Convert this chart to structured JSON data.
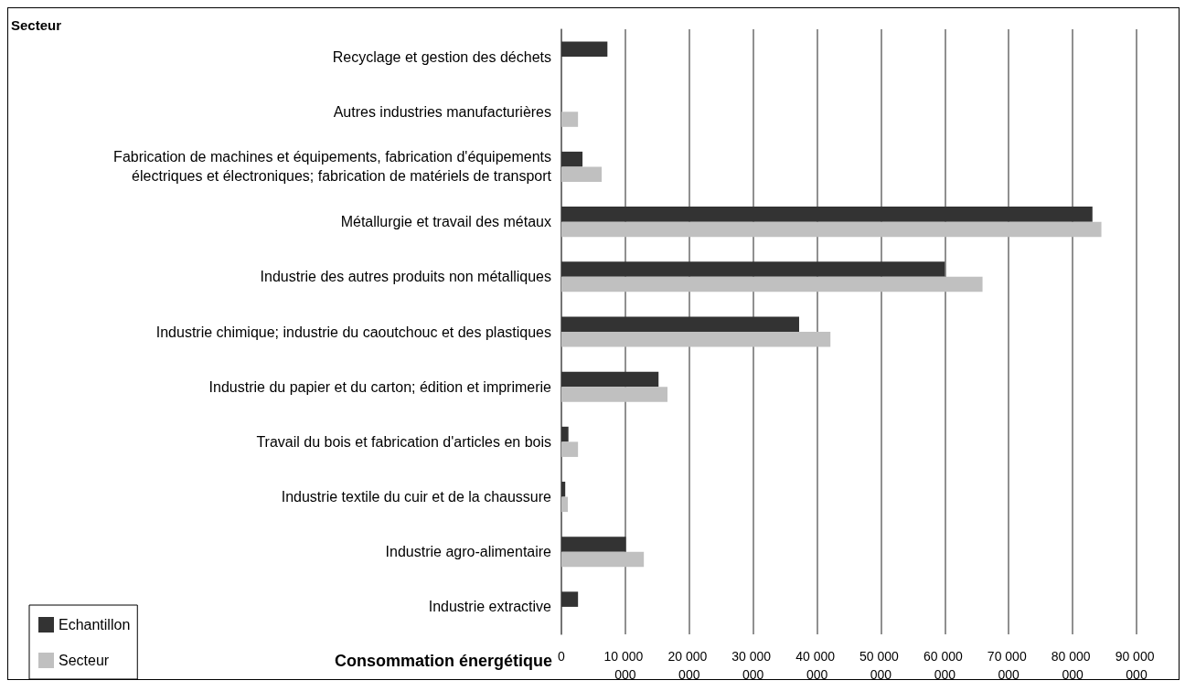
{
  "chart_data": {
    "type": "bar",
    "orientation": "horizontal",
    "xlabel": "Consommation énergétique",
    "annotations": [
      "Secteur"
    ],
    "categories": [
      "Recyclage et gestion des déchets",
      "Autres industries manufacturières",
      "Fabrication de machines et équipements, fabrication d'équipements électriques et électroniques; fabrication de matériels de transport",
      "Métallurgie et travail des métaux",
      "Industrie des autres produits non métalliques",
      "Industrie chimique; industrie du caoutchouc et des plastiques",
      "Industrie du papier et du carton; édition et imprimerie",
      "Travail du bois et fabrication d'articles en bois",
      "Industrie textile du cuir et de la chaussure",
      "Industrie agro-alimentaire",
      "Industrie extractive"
    ],
    "series": [
      {
        "name": "Echantillon",
        "color": "#333333",
        "values": [
          7200000,
          null,
          3300000,
          83100000,
          60000000,
          37200000,
          15200000,
          1100000,
          600000,
          10100000,
          2600000
        ]
      },
      {
        "name": "Secteur",
        "color": "#c0c0c0",
        "values": [
          null,
          2600000,
          6300000,
          84500000,
          65900000,
          42100000,
          16600000,
          2600000,
          1000000,
          12900000,
          null
        ]
      }
    ],
    "xlim": [
      0,
      90000000
    ],
    "xticks": [
      0,
      {
        "value": 10000000,
        "label": "10 000 000"
      },
      {
        "value": 20000000,
        "label": "20 000 000"
      },
      {
        "value": 30000000,
        "label": "30 000 000"
      },
      {
        "value": 40000000,
        "label": "40 000 000"
      },
      {
        "value": 50000000,
        "label": "50 000 000"
      },
      {
        "value": 60000000,
        "label": "60 000 000"
      },
      {
        "value": 70000000,
        "label": "70 000 000"
      },
      {
        "value": 80000000,
        "label": "80 000 000"
      },
      {
        "value": 90000000,
        "label": "90 000 000"
      }
    ],
    "grid": "x",
    "legend": "bottom left"
  }
}
